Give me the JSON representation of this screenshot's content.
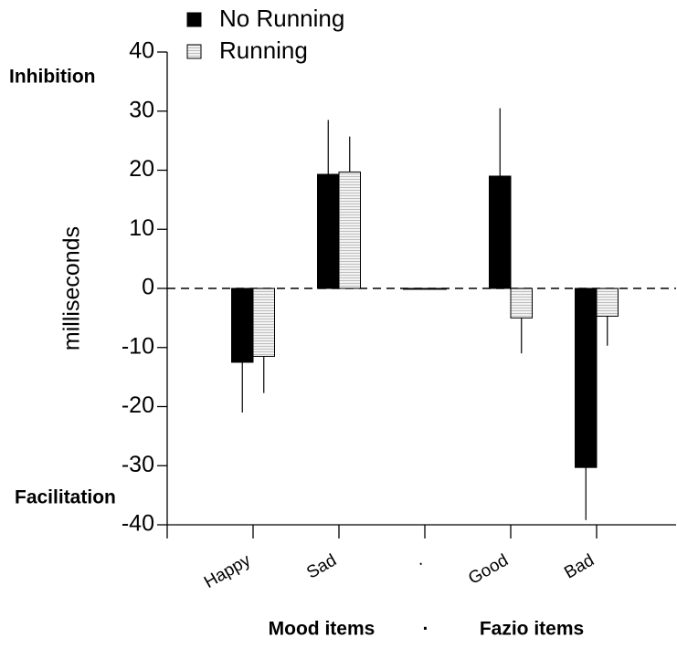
{
  "chart_data": {
    "type": "bar",
    "ylabel": "milliseconds",
    "categories": [
      "Happy",
      "Sad",
      ".",
      "Good",
      "Bad"
    ],
    "series": [
      {
        "name": "No Running",
        "color": "#000000",
        "values": [
          -12.5,
          19.3,
          0,
          19,
          -30.3
        ],
        "errors": [
          8.5,
          9.2,
          null,
          11.5,
          8.9
        ]
      },
      {
        "name": "Running",
        "color": "#e6e6e6",
        "values": [
          -11.5,
          19.7,
          0,
          -5,
          -4.7
        ],
        "errors": [
          6.2,
          6,
          null,
          6,
          5
        ]
      }
    ],
    "ylim": [
      -40,
      40
    ],
    "yticks": [
      -40,
      -30,
      -20,
      -10,
      0,
      10,
      20,
      30,
      40
    ],
    "annotations": {
      "top": "Inhibition",
      "bottom": "Facilitation"
    },
    "group_labels": {
      "left": "Mood items",
      "separator": "·",
      "right": "Fazio items"
    },
    "zero_line": "dashed"
  }
}
